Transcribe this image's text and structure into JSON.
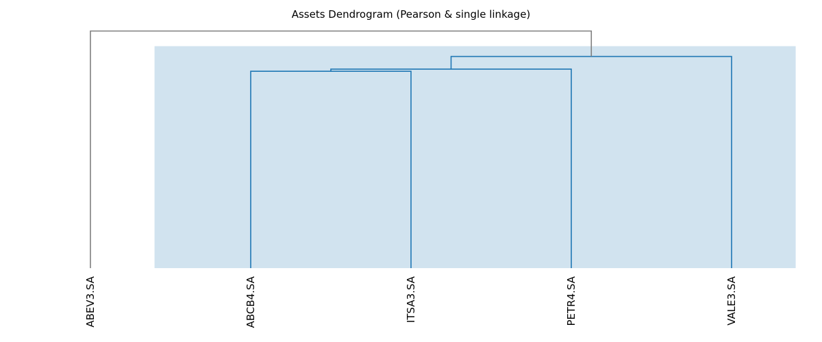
{
  "chart_data": {
    "type": "dendrogram",
    "title": "Assets Dendrogram (Pearson & single linkage)",
    "leaves": [
      "ABEV3.SA",
      "ABCB4.SA",
      "ITSA3.SA",
      "PETR4.SA",
      "VALE3.SA"
    ],
    "merges": [
      {
        "id": "c1",
        "left": "ABCB4.SA",
        "right": "ITSA3.SA",
        "height": 0.93
      },
      {
        "id": "c2",
        "left": "c1",
        "right": "PETR4.SA",
        "height": 0.94
      },
      {
        "id": "c3",
        "left": "c2",
        "right": "VALE3.SA",
        "height": 1.0
      },
      {
        "id": "c4",
        "left": "ABEV3.SA",
        "right": "c3",
        "height": 1.12
      }
    ],
    "y_max": 1.16,
    "cluster_highlight": {
      "leaves": [
        "ABCB4.SA",
        "ITSA3.SA",
        "PETR4.SA",
        "VALE3.SA"
      ],
      "color": "#1f77b4",
      "fill": "#d1e3ef"
    },
    "root_link_color": "#7f7f7f"
  }
}
